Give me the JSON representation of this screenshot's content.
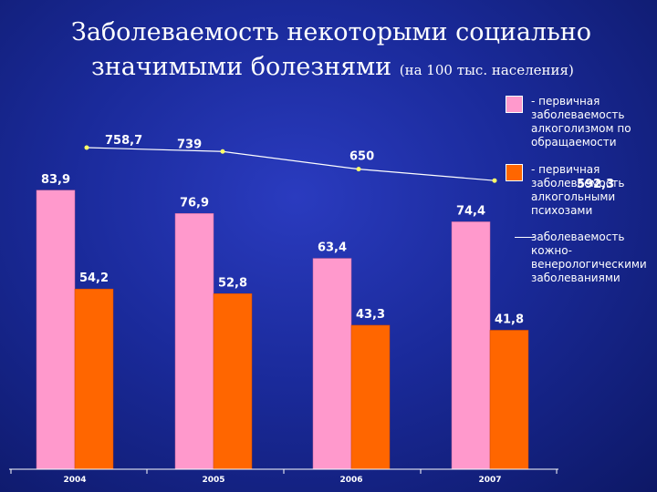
{
  "title": {
    "line1": "Заболеваемость некоторыми социально",
    "line2": "значимыми болезнями",
    "unit": "(на 100 тыс. населения)"
  },
  "legend": [
    {
      "label": "- первичная заболеваемость алкоголизмом по обращаемости",
      "color": "#ff99cc",
      "marker": "square"
    },
    {
      "label": "- первичная заболеваемость алкогольными психозами",
      "color": "#ff6600",
      "marker": "square"
    },
    {
      "label": "заболеваемость кожно-венерологическими заболеваниями",
      "color": "#ffffff",
      "marker": "line"
    }
  ],
  "chart_data": {
    "type": "bar",
    "categories": [
      "2004",
      "2005",
      "2006",
      "2007"
    ],
    "series": [
      {
        "name": "- первичная заболеваемость алкоголизмом по обращаемости",
        "values": [
          83.9,
          76.9,
          63.4,
          74.4
        ],
        "labels": [
          "83,9",
          "76,9",
          "63,4",
          "74,4"
        ],
        "color": "#ff99cc"
      },
      {
        "name": "- первичная заболеваемость алкогольными психозами",
        "values": [
          54.2,
          52.8,
          43.3,
          41.8
        ],
        "labels": [
          "54,2",
          "52,8",
          "43,3",
          "41,8"
        ],
        "color": "#ff6600"
      }
    ],
    "line_series": {
      "name": "заболеваемость кожно-венерологическими заболеваниями",
      "values": [
        758.7,
        739,
        650,
        592.3
      ],
      "labels": [
        "758,7",
        "739",
        "650",
        "592,3"
      ],
      "color": "#ffffff",
      "marker_color": "#ffff66"
    },
    "ylim": [
      0,
      110
    ],
    "line_ylim": [
      0,
      1000
    ]
  }
}
